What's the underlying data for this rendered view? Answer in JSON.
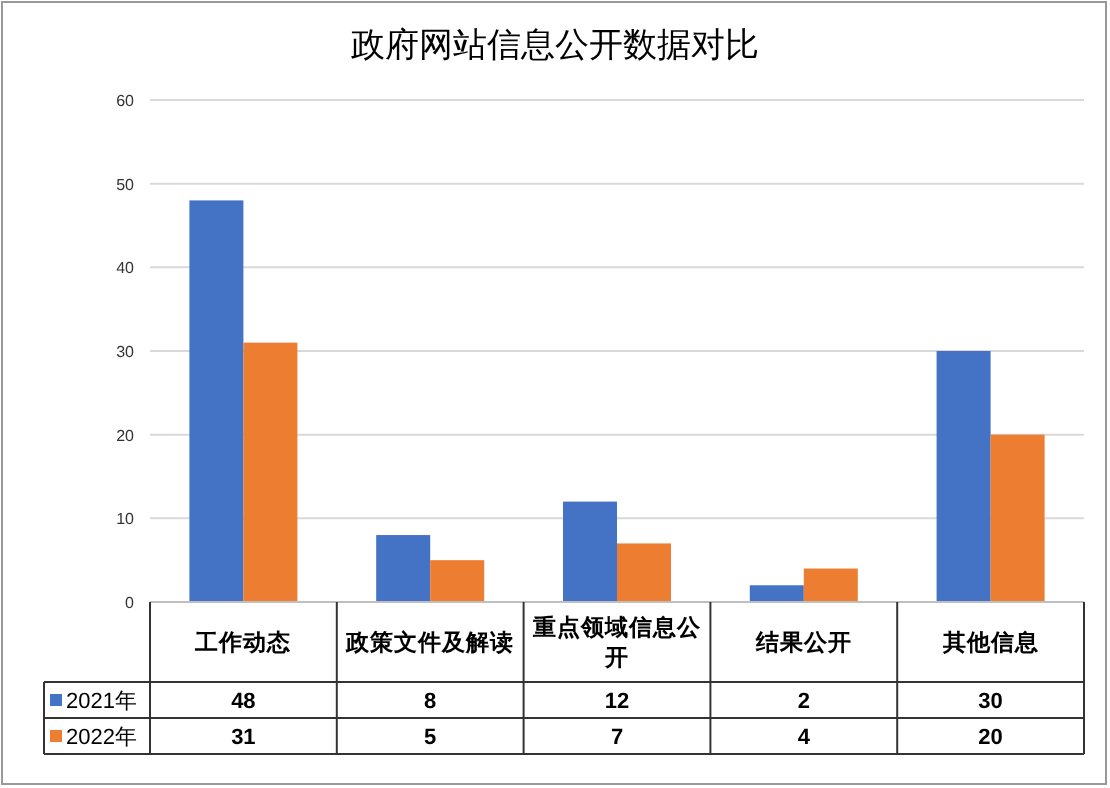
{
  "chart_data": {
    "type": "bar",
    "title": "政府网站信息公开数据对比",
    "categories": [
      "工作动态",
      "政策文件及解读",
      "重点领域信息公开",
      "结果公开",
      "其他信息"
    ],
    "series": [
      {
        "name": "2021年",
        "color": "#4472c4",
        "values": [
          48,
          8,
          12,
          2,
          30
        ]
      },
      {
        "name": "2022年",
        "color": "#ed7d31",
        "values": [
          31,
          5,
          7,
          4,
          20
        ]
      }
    ],
    "ylim": [
      0,
      60
    ],
    "yticks": [
      0,
      10,
      20,
      30,
      40,
      50,
      60
    ],
    "grid": "y",
    "legend": "bottom",
    "data_labels": true
  }
}
